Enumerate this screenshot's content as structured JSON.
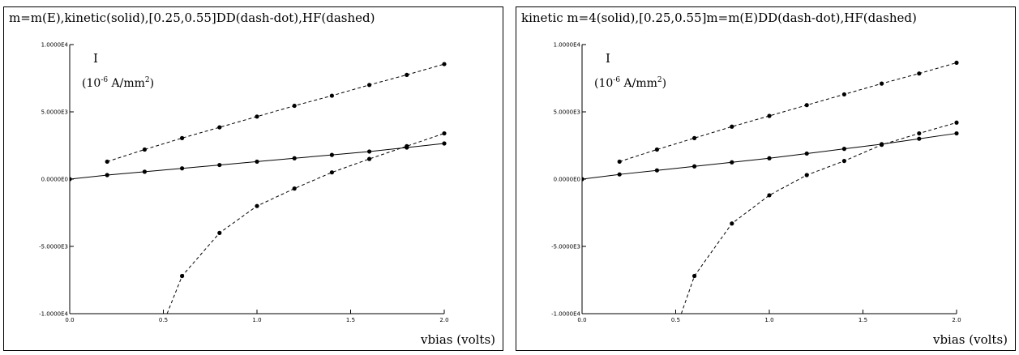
{
  "chart_data": [
    {
      "type": "line",
      "title": "m=m(E),kinetic(solid),[0.25,0.55]DD(dash-dot),HF(dashed)",
      "ylabel": "I",
      "yunit_base": "(10",
      "yunit_exp": "-6",
      "yunit_mid": " A/mm",
      "yunit_exp2": "2",
      "yunit_end": ")",
      "xlabel": "vbias (volts)",
      "xlim": [
        0.0,
        2.0
      ],
      "ylim": [
        -10000,
        10000
      ],
      "x_ticks": [
        "0.0",
        "0.5",
        "1.0",
        "1.5",
        "2.0"
      ],
      "y_ticks": [
        "1.0000E4",
        "5.0000E3",
        "0.0000E0",
        "-5.0000E3",
        "-1.0000E4"
      ],
      "series": [
        {
          "style": "solid",
          "x": [
            0.0,
            0.2,
            0.4,
            0.6,
            0.8,
            1.0,
            1.2,
            1.4,
            1.6,
            1.8,
            2.0
          ],
          "y": [
            0,
            300,
            550,
            800,
            1050,
            1300,
            1550,
            1800,
            2050,
            2350,
            2650
          ]
        },
        {
          "style": "dashed",
          "x": [
            0.2,
            0.4,
            0.6,
            0.8,
            1.0,
            1.2,
            1.4,
            1.6,
            1.8,
            2.0
          ],
          "y": [
            1300,
            2200,
            3050,
            3850,
            4650,
            5450,
            6200,
            7000,
            7750,
            8550
          ]
        },
        {
          "style": "dashed",
          "x": [
            0.52,
            0.6,
            0.8,
            1.0,
            1.2,
            1.4,
            1.6,
            1.8,
            2.0
          ],
          "y": [
            -10000,
            -7200,
            -4000,
            -2000,
            -700,
            500,
            1500,
            2450,
            3400
          ]
        }
      ]
    },
    {
      "type": "line",
      "title": "kinetic m=4(solid),[0.25,0.55]m=m(E)DD(dash-dot),HF(dashed)",
      "ylabel": "I",
      "yunit_base": "(10",
      "yunit_exp": "-6",
      "yunit_mid": " A/mm",
      "yunit_exp2": "2",
      "yunit_end": ")",
      "xlabel": "vbias (volts)",
      "xlim": [
        0.0,
        2.0
      ],
      "ylim": [
        -10000,
        10000
      ],
      "x_ticks": [
        "0.0",
        "0.5",
        "1.0",
        "1.5",
        "2.0"
      ],
      "y_ticks": [
        "1.0000E4",
        "5.0000E3",
        "0.0000E0",
        "-5.0000E3",
        "-1.0000E4"
      ],
      "series": [
        {
          "style": "solid",
          "x": [
            0.0,
            0.2,
            0.4,
            0.6,
            0.8,
            1.0,
            1.2,
            1.4,
            1.6,
            1.8,
            2.0
          ],
          "y": [
            0,
            350,
            650,
            950,
            1250,
            1550,
            1900,
            2250,
            2600,
            3000,
            3400
          ]
        },
        {
          "style": "dashed",
          "x": [
            0.2,
            0.4,
            0.6,
            0.8,
            1.0,
            1.2,
            1.4,
            1.6,
            1.8,
            2.0
          ],
          "y": [
            1300,
            2200,
            3050,
            3900,
            4700,
            5500,
            6300,
            7100,
            7850,
            8650
          ]
        },
        {
          "style": "dashed",
          "x": [
            0.53,
            0.6,
            0.8,
            1.0,
            1.2,
            1.4,
            1.6,
            1.8,
            2.0
          ],
          "y": [
            -10000,
            -7200,
            -3300,
            -1200,
            300,
            1350,
            2550,
            3400,
            4200
          ]
        }
      ]
    }
  ]
}
